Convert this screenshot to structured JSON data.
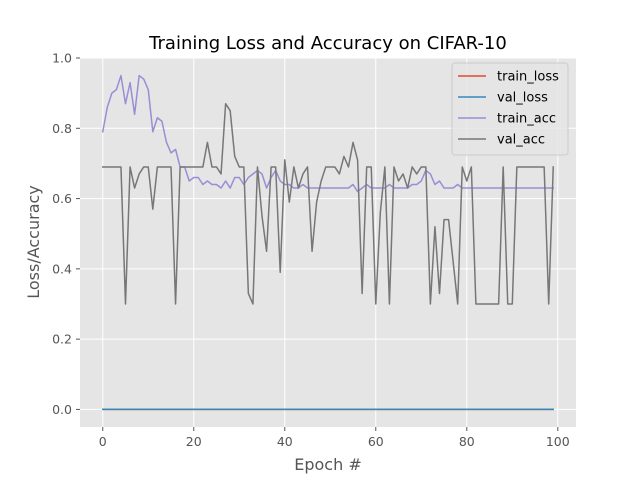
{
  "chart_data": {
    "type": "line",
    "title": "Training Loss and Accuracy on CIFAR-10",
    "xlabel": "Epoch #",
    "ylabel": "Loss/Accuracy",
    "xlim": [
      -5,
      104
    ],
    "ylim": [
      -0.05,
      1.0
    ],
    "xticks": [
      "0",
      "20",
      "40",
      "60",
      "80",
      "100"
    ],
    "yticks": [
      "0.0",
      "0.2",
      "0.4",
      "0.6",
      "0.8",
      "1.0"
    ],
    "grid": true,
    "legend_position": "top-right",
    "series": [
      {
        "name": "train_loss",
        "color": "#E24A33",
        "values": [
          0,
          0,
          0,
          0,
          0,
          0,
          0,
          0,
          0,
          0,
          0,
          0,
          0,
          0,
          0,
          0,
          0,
          0,
          0,
          0,
          0,
          0,
          0,
          0,
          0,
          0,
          0,
          0,
          0,
          0,
          0,
          0,
          0,
          0,
          0,
          0,
          0,
          0,
          0,
          0,
          0,
          0,
          0,
          0,
          0,
          0,
          0,
          0,
          0,
          0,
          0,
          0,
          0,
          0,
          0,
          0,
          0,
          0,
          0,
          0,
          0,
          0,
          0,
          0,
          0,
          0,
          0,
          0,
          0,
          0,
          0,
          0,
          0,
          0,
          0,
          0,
          0,
          0,
          0,
          0,
          0,
          0,
          0,
          0,
          0,
          0,
          0,
          0,
          0,
          0,
          0,
          0,
          0,
          0,
          0,
          0,
          0,
          0,
          0,
          0
        ]
      },
      {
        "name": "val_loss",
        "color": "#348ABD",
        "values": [
          0,
          0,
          0,
          0,
          0,
          0,
          0,
          0,
          0,
          0,
          0,
          0,
          0,
          0,
          0,
          0,
          0,
          0,
          0,
          0,
          0,
          0,
          0,
          0,
          0,
          0,
          0,
          0,
          0,
          0,
          0,
          0,
          0,
          0,
          0,
          0,
          0,
          0,
          0,
          0,
          0,
          0,
          0,
          0,
          0,
          0,
          0,
          0,
          0,
          0,
          0,
          0,
          0,
          0,
          0,
          0,
          0,
          0,
          0,
          0,
          0,
          0,
          0,
          0,
          0,
          0,
          0,
          0,
          0,
          0,
          0,
          0,
          0,
          0,
          0,
          0,
          0,
          0,
          0,
          0,
          0,
          0,
          0,
          0,
          0,
          0,
          0,
          0,
          0,
          0,
          0,
          0,
          0,
          0,
          0,
          0,
          0,
          0,
          0,
          0
        ]
      },
      {
        "name": "train_acc",
        "color": "#988ED5",
        "values": [
          0.79,
          0.86,
          0.9,
          0.91,
          0.95,
          0.87,
          0.93,
          0.84,
          0.95,
          0.94,
          0.91,
          0.79,
          0.83,
          0.82,
          0.76,
          0.73,
          0.74,
          0.69,
          0.69,
          0.65,
          0.66,
          0.66,
          0.64,
          0.65,
          0.64,
          0.64,
          0.63,
          0.65,
          0.63,
          0.66,
          0.66,
          0.64,
          0.66,
          0.67,
          0.68,
          0.67,
          0.63,
          0.66,
          0.68,
          0.65,
          0.64,
          0.64,
          0.63,
          0.63,
          0.64,
          0.63,
          0.63,
          0.63,
          0.63,
          0.63,
          0.63,
          0.63,
          0.63,
          0.63,
          0.63,
          0.64,
          0.62,
          0.63,
          0.64,
          0.63,
          0.63,
          0.63,
          0.63,
          0.64,
          0.63,
          0.63,
          0.63,
          0.63,
          0.64,
          0.64,
          0.65,
          0.68,
          0.67,
          0.64,
          0.65,
          0.63,
          0.63,
          0.63,
          0.64,
          0.63,
          0.63,
          0.63,
          0.63,
          0.63,
          0.63,
          0.63,
          0.63,
          0.63,
          0.63,
          0.63,
          0.63,
          0.63,
          0.63,
          0.63,
          0.63,
          0.63,
          0.63,
          0.63,
          0.63,
          0.63
        ]
      },
      {
        "name": "val_acc",
        "color": "#777777",
        "values": [
          0.69,
          0.69,
          0.69,
          0.69,
          0.69,
          0.3,
          0.69,
          0.63,
          0.67,
          0.69,
          0.69,
          0.57,
          0.69,
          0.69,
          0.69,
          0.69,
          0.3,
          0.69,
          0.69,
          0.69,
          0.69,
          0.69,
          0.69,
          0.76,
          0.69,
          0.69,
          0.67,
          0.87,
          0.85,
          0.72,
          0.69,
          0.69,
          0.33,
          0.3,
          0.69,
          0.55,
          0.45,
          0.69,
          0.69,
          0.39,
          0.71,
          0.59,
          0.69,
          0.63,
          0.67,
          0.69,
          0.45,
          0.59,
          0.65,
          0.69,
          0.69,
          0.69,
          0.67,
          0.72,
          0.69,
          0.76,
          0.71,
          0.33,
          0.69,
          0.69,
          0.3,
          0.56,
          0.69,
          0.3,
          0.69,
          0.65,
          0.67,
          0.63,
          0.69,
          0.67,
          0.69,
          0.69,
          0.3,
          0.52,
          0.33,
          0.54,
          0.54,
          0.42,
          0.3,
          0.69,
          0.65,
          0.69,
          0.3,
          0.3,
          0.3,
          0.3,
          0.3,
          0.3,
          0.69,
          0.3,
          0.3,
          0.69,
          0.69,
          0.69,
          0.69,
          0.69,
          0.69,
          0.69,
          0.3,
          0.69
        ]
      }
    ]
  }
}
